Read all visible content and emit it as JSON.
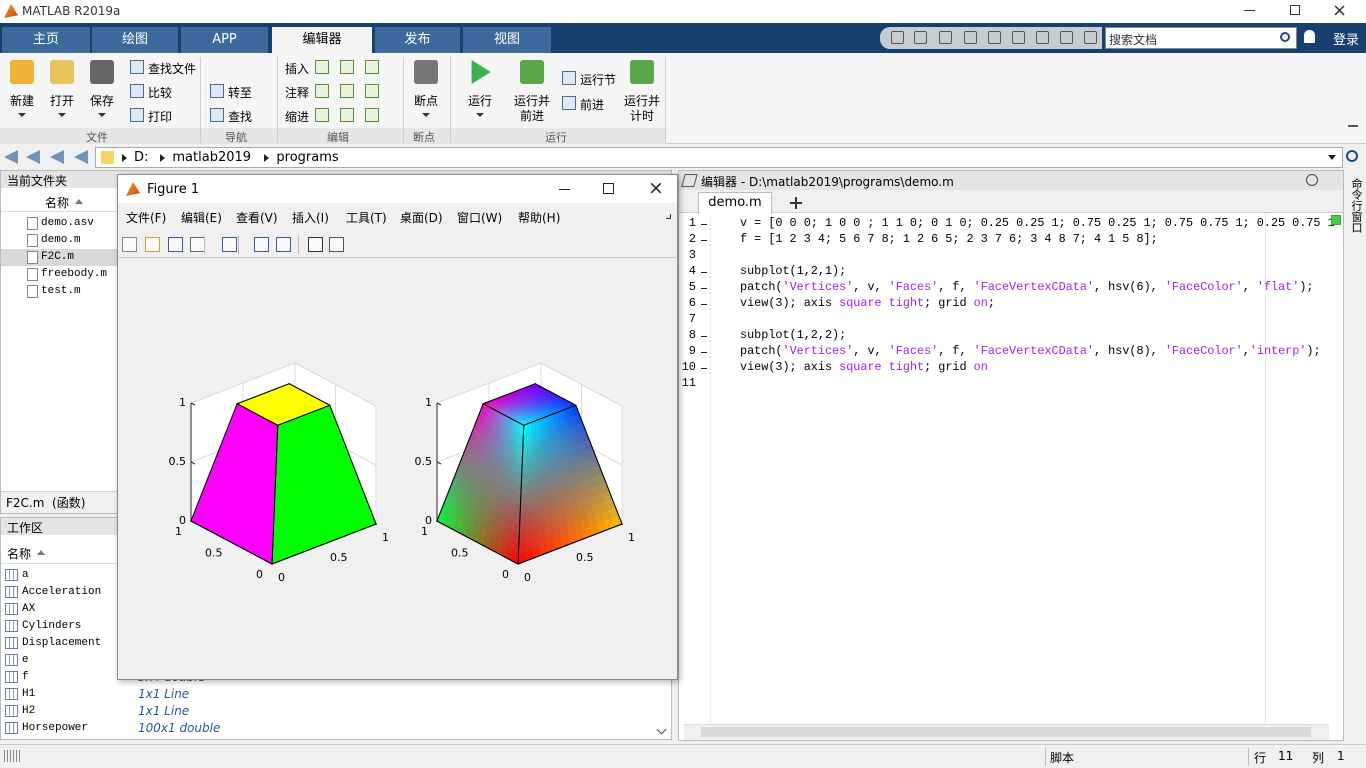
{
  "window": {
    "title": "MATLAB R2019a"
  },
  "tabs": [
    "主页",
    "绘图",
    "APP",
    "编辑器",
    "发布",
    "视图"
  ],
  "active_tab": 3,
  "search": {
    "placeholder": "搜索文档"
  },
  "login": "登录",
  "toolstrip": {
    "groups": [
      {
        "label": "文件",
        "large": [
          [
            "新建"
          ],
          [
            "打开"
          ],
          [
            "保存"
          ]
        ],
        "small": [
          "查找文件",
          "比较",
          "打印"
        ]
      },
      {
        "label": "导航",
        "large": [],
        "small": [
          "转至",
          "查找"
        ]
      },
      {
        "label": "编辑",
        "large": [],
        "small": [
          "插入",
          "注释",
          "缩进"
        ]
      },
      {
        "label": "断点",
        "large": [
          [
            "断点"
          ]
        ],
        "small": []
      },
      {
        "label": "运行",
        "large": [
          [
            "运行"
          ],
          [
            "运行并",
            "前进"
          ],
          [
            "运行并",
            "计时"
          ]
        ],
        "small": [
          "运行节",
          "前进"
        ]
      }
    ]
  },
  "address": [
    "D:",
    "matlab2019",
    "programs"
  ],
  "current_folder": {
    "title": "当前文件夹",
    "column": "名称",
    "files": [
      "demo.asv",
      "demo.m",
      "F2C.m",
      "freebody.m",
      "test.m"
    ],
    "selected": 2,
    "details": "F2C.m  (函数)"
  },
  "workspace": {
    "title": "工作区",
    "column": "名称",
    "variables": [
      {
        "name": "a"
      },
      {
        "name": "Acceleration"
      },
      {
        "name": "AX"
      },
      {
        "name": "Cylinders"
      },
      {
        "name": "Displacement"
      },
      {
        "name": "e"
      },
      {
        "name": "f",
        "value": "5x4 double"
      },
      {
        "name": "H1",
        "value": "1x1 Line"
      },
      {
        "name": "H2",
        "value": "1x1 Line"
      },
      {
        "name": "Horsepower",
        "value": "100x1 double"
      }
    ]
  },
  "editor": {
    "title": "编辑器 - D:\\matlab2019\\programs\\demo.m",
    "tab": "demo.m",
    "line_numbers": [
      1,
      2,
      3,
      4,
      5,
      6,
      7,
      8,
      9,
      10,
      11
    ],
    "code": [
      {
        "line": 1,
        "text": "v = [0 0 0; 1 0 0 ; 1 1 0; 0 1 0; 0.25 0.25 1; 0.75 0.25 1; 0.75 0.75 1; 0.25 0.75 1"
      },
      {
        "line": 2,
        "text": "f = [1 2 3 4; 5 6 7 8; 1 2 6 5; 2 3 7 6; 3 4 8 7; 4 1 5 8];"
      },
      {
        "line": 4,
        "text": "subplot(1,2,1);"
      },
      {
        "line": 5,
        "text": "patch('Vertices', v, 'Faces', f, 'FaceVertexCData', hsv(6), 'FaceColor', 'flat');"
      },
      {
        "line": 6,
        "text": "view(3); axis square tight; grid on;"
      },
      {
        "line": 8,
        "text": "subplot(1,2,2);"
      },
      {
        "line": 9,
        "text": "patch('Vertices', v, 'Faces', f, 'FaceVertexCData', hsv(8), 'FaceColor','interp');"
      },
      {
        "line": 10,
        "text": "view(3); axis square tight; grid on"
      }
    ]
  },
  "command_window": "命令行窗口",
  "status": {
    "mode": "脚本",
    "row_label": "行",
    "row": 11,
    "col_label": "列",
    "col": 1
  },
  "figure": {
    "title": "Figure 1",
    "menus": [
      "文件(F)",
      "编辑(E)",
      "查看(V)",
      "插入(I)",
      "工具(T)",
      "桌面(D)",
      "窗口(W)",
      "帮助(H)"
    ],
    "axes": [
      {
        "xlim": [
          0,
          1
        ],
        "ylim": [
          0,
          1
        ],
        "zlim": [
          0,
          1
        ],
        "xticks": [
          0,
          0.5,
          1
        ],
        "yticks": [
          0,
          0.5,
          1
        ],
        "zticks": [
          0,
          0.5,
          1
        ],
        "grid": true
      },
      {
        "xlim": [
          0,
          1
        ],
        "ylim": [
          0,
          1
        ],
        "zlim": [
          0,
          1
        ],
        "xticks": [
          0,
          0.5,
          1
        ],
        "yticks": [
          0,
          0.5,
          1
        ],
        "zticks": [
          0,
          0.5,
          1
        ],
        "grid": true
      }
    ]
  }
}
